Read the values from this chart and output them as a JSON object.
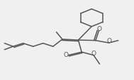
{
  "bg_color": "#f0f0f0",
  "line_color": "#555555",
  "lw": 1.1,
  "figsize": [
    1.89,
    1.15
  ],
  "dpi": 100,
  "xlim": [
    0.0,
    1.0
  ],
  "ylim": [
    0.0,
    1.0
  ]
}
